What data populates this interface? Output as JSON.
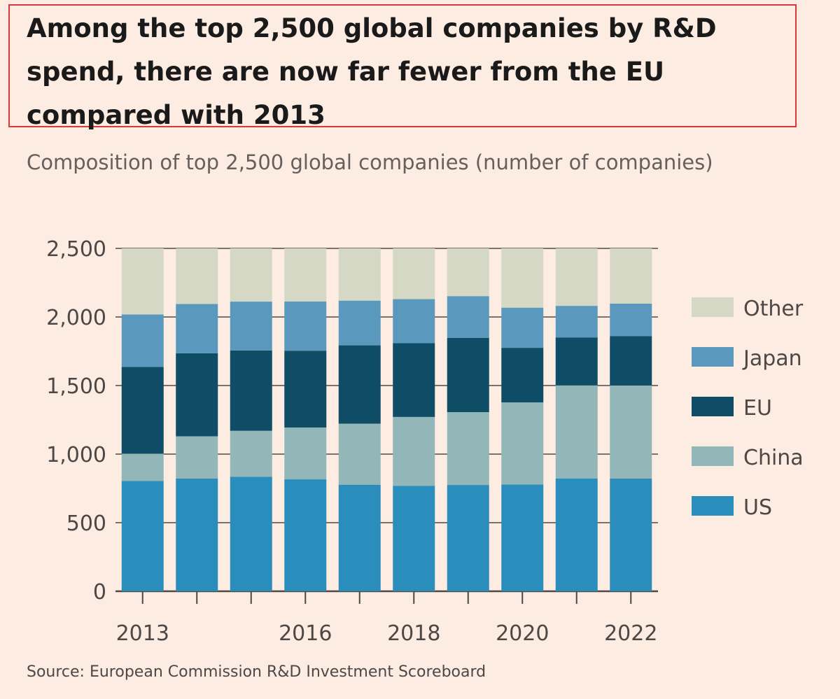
{
  "header": {
    "title": "Among the top 2,500 global companies by R&D spend, there are now far fewer from the EU compared with 2013",
    "subtitle": "Composition of top 2,500 global companies (number of companies)"
  },
  "footer": {
    "source": "Source: European Commission R&D Investment Scoreboard"
  },
  "chart_data": {
    "type": "bar",
    "stacked": true,
    "title": "Among the top 2,500 global companies by R&D spend, there are now far fewer from the EU compared with 2013",
    "subtitle": "Composition of top 2,500 global companies (number of companies)",
    "categories": [
      "2013",
      "2014",
      "2015",
      "2016",
      "2017",
      "2018",
      "2019",
      "2020",
      "2021",
      "2022"
    ],
    "x_tick_labels": [
      "2013",
      "",
      "",
      "2016",
      "",
      "2018",
      "",
      "2020",
      "",
      "2022"
    ],
    "y_ticks": [
      0,
      500,
      1000,
      1500,
      2000,
      2500
    ],
    "y_tick_labels": [
      "0",
      "500",
      "1,000",
      "1,500",
      "2,000",
      "2,500"
    ],
    "ylim": [
      0,
      2500
    ],
    "xlabel": "",
    "ylabel": "",
    "grid": true,
    "legend_position": "right",
    "series": [
      {
        "name": "US",
        "color": "#2b8dbb",
        "values": [
          804,
          822,
          835,
          816,
          777,
          769,
          775,
          779,
          823,
          822
        ]
      },
      {
        "name": "China",
        "color": "#93b7b8",
        "values": [
          199,
          308,
          335,
          378,
          445,
          502,
          531,
          598,
          678,
          678
        ]
      },
      {
        "name": "EU",
        "color": "#0f4d67",
        "values": [
          633,
          605,
          586,
          560,
          571,
          538,
          542,
          398,
          350,
          361
        ]
      },
      {
        "name": "Japan",
        "color": "#5a99bd",
        "values": [
          382,
          360,
          356,
          359,
          326,
          321,
          304,
          293,
          230,
          236
        ]
      },
      {
        "name": "Other",
        "color": "#d5d8c5",
        "values": [
          482,
          405,
          388,
          387,
          381,
          370,
          348,
          432,
          419,
          403
        ]
      }
    ],
    "legend_order": [
      "Other",
      "Japan",
      "EU",
      "China",
      "US"
    ],
    "source": "Source: European Commission R&D Investment Scoreboard"
  }
}
